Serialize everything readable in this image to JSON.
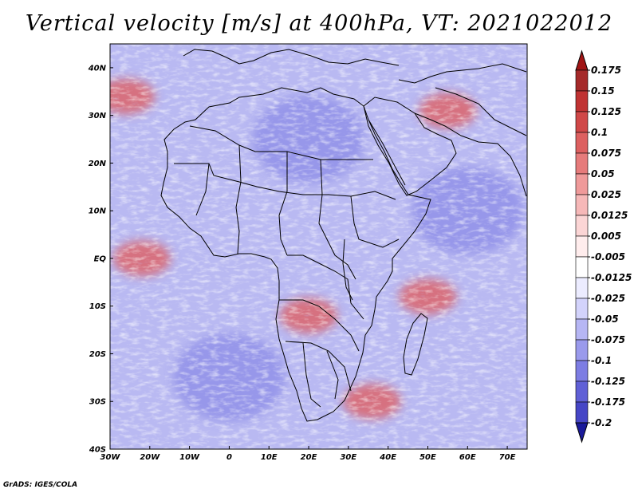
{
  "figure": {
    "title": "Vertical velocity [m/s] at 400hPa, VT: 2021022012",
    "credit": "GrADS: IGES/COLA",
    "variable": "Vertical velocity",
    "units": "m/s",
    "level": "400hPa",
    "valid_time": "2021022012"
  },
  "map": {
    "region": "Africa and surrounding oceans",
    "lon_range": [
      -30,
      75
    ],
    "lat_range": [
      -40,
      45
    ],
    "lon_ticks": [
      {
        "value": -30,
        "label": "30W"
      },
      {
        "value": -20,
        "label": "20W"
      },
      {
        "value": -10,
        "label": "10W"
      },
      {
        "value": 0,
        "label": "0"
      },
      {
        "value": 10,
        "label": "10E"
      },
      {
        "value": 20,
        "label": "20E"
      },
      {
        "value": 30,
        "label": "30E"
      },
      {
        "value": 40,
        "label": "40E"
      },
      {
        "value": 50,
        "label": "50E"
      },
      {
        "value": 60,
        "label": "60E"
      },
      {
        "value": 70,
        "label": "70E"
      }
    ],
    "lat_ticks": [
      {
        "value": 40,
        "label": "40N"
      },
      {
        "value": 30,
        "label": "30N"
      },
      {
        "value": 20,
        "label": "20N"
      },
      {
        "value": 10,
        "label": "10N"
      },
      {
        "value": 0,
        "label": "EQ"
      },
      {
        "value": -10,
        "label": "10S"
      },
      {
        "value": -20,
        "label": "20S"
      },
      {
        "value": -30,
        "label": "30S"
      },
      {
        "value": -40,
        "label": "40S"
      }
    ],
    "features": [
      {
        "name": "ascent-band-north-atlantic",
        "lon": -26,
        "lat": 34,
        "sign": "positive"
      },
      {
        "name": "ascent-iran-zagros",
        "lon": 55,
        "lat": 31,
        "sign": "positive"
      },
      {
        "name": "ascent-congo-basin",
        "lon": 20,
        "lat": -12,
        "sign": "positive"
      },
      {
        "name": "ascent-mozambique-channel",
        "lon": 50,
        "lat": -8,
        "sign": "positive"
      },
      {
        "name": "ascent-sw-indian-ocean-band",
        "lon": 36,
        "lat": -30,
        "sign": "positive"
      },
      {
        "name": "ascent-equatorial-atlantic",
        "lon": -22,
        "lat": 0,
        "sign": "positive"
      },
      {
        "name": "descent-sahara",
        "lon": 20,
        "lat": 25,
        "sign": "negative"
      },
      {
        "name": "descent-south-atlantic",
        "lon": 0,
        "lat": -25,
        "sign": "negative"
      },
      {
        "name": "descent-indian-ocean",
        "lon": 60,
        "lat": 10,
        "sign": "negative"
      }
    ]
  },
  "colorbar": {
    "levels": [
      {
        "label": "0.175",
        "color": "#a52a2a"
      },
      {
        "label": "0.15",
        "color": "#c03333"
      },
      {
        "label": "0.125",
        "color": "#d04848"
      },
      {
        "label": "0.1",
        "color": "#dd6060"
      },
      {
        "label": "0.075",
        "color": "#e67b7b"
      },
      {
        "label": "0.05",
        "color": "#ef9a9a"
      },
      {
        "label": "0.025",
        "color": "#f6b8b8"
      },
      {
        "label": "0.0125",
        "color": "#fbd5d5"
      },
      {
        "label": "0.005",
        "color": "#ffeded"
      },
      {
        "label": "-0.005",
        "color": "#ffffff"
      },
      {
        "label": "-0.0125",
        "color": "#ececff"
      },
      {
        "label": "-0.025",
        "color": "#d3d3fb"
      },
      {
        "label": "-0.05",
        "color": "#b6b6f4"
      },
      {
        "label": "-0.075",
        "color": "#9a9aec"
      },
      {
        "label": "-0.1",
        "color": "#7d7de3"
      },
      {
        "label": "-0.125",
        "color": "#6060d6"
      },
      {
        "label": "-0.175",
        "color": "#4646c6"
      },
      {
        "label": "-0.2",
        "color": "#2e2eb0"
      }
    ],
    "top_color": "#a01414",
    "bottom_color": "#1a1a9a"
  },
  "palette": {
    "positive": "#e05a5a",
    "negative": "#6f6fe0",
    "neutral": "#ffffff",
    "border": "#000000"
  }
}
